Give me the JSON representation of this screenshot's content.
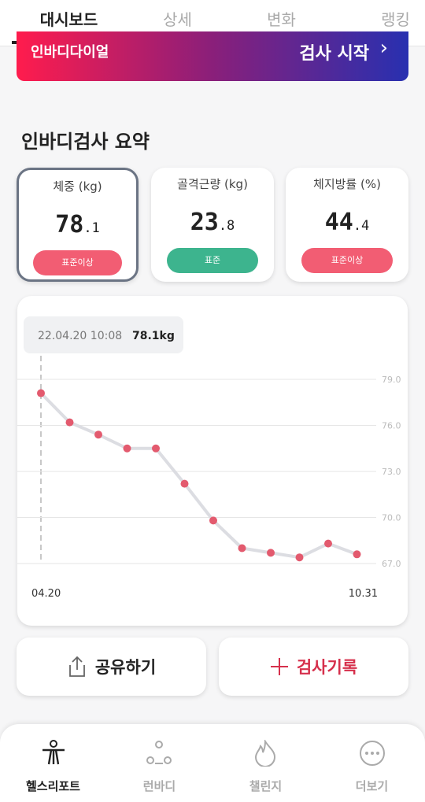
{
  "tabs": [
    "대시보드",
    "상세",
    "변화",
    "랭킹"
  ],
  "banner": {
    "left": "인바디다이얼",
    "right": "검사 시작"
  },
  "section_title": "인바디검사 요약",
  "cards": [
    {
      "label": "체중 (kg)",
      "value": "78",
      "decimal": ".1",
      "badge": "표준이상"
    },
    {
      "label": "골격근량 (kg)",
      "value": "23",
      "decimal": ".8",
      "badge": "표준"
    },
    {
      "label": "체지방률 (%)",
      "value": "44",
      "decimal": ".4",
      "badge": "표준이상"
    }
  ],
  "chart_data": {
    "type": "line",
    "tooltip": {
      "date": "22.04.20 10:08",
      "value": "78.1kg"
    },
    "categories": [
      "04.20",
      null,
      null,
      null,
      null,
      null,
      null,
      null,
      null,
      null,
      null,
      "10.31"
    ],
    "series": [
      {
        "color": "#e35a6e",
        "values": [
          78.1,
          76.2,
          75.4,
          74.5,
          74.5,
          72.2,
          69.8,
          68.0,
          67.7,
          67.4,
          68.3,
          67.6
        ]
      }
    ],
    "ylim": [
      67,
      79
    ],
    "yticks": [
      {
        "value": 67,
        "label": "67.0"
      },
      {
        "value": 70,
        "label": "70.0"
      },
      {
        "value": 73,
        "label": "73.0"
      },
      {
        "value": 76,
        "label": "76.0"
      },
      {
        "value": 79,
        "label": "79.0"
      }
    ],
    "grid": true
  },
  "buttons": [
    "공유하기",
    "검사기록"
  ],
  "nav": [
    "헬스리포트",
    "런바디",
    "챌린지",
    "더보기"
  ]
}
